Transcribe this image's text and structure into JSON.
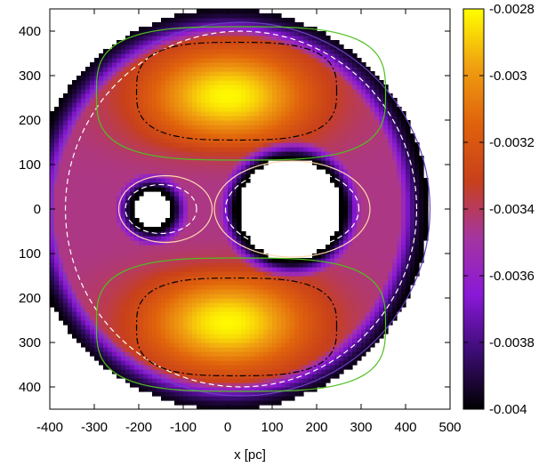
{
  "chart_data": {
    "type": "heatmap",
    "xlabel": "x [pc]",
    "ylabel": "",
    "xlim": [
      -400,
      500
    ],
    "ylim": [
      -450,
      450
    ],
    "x_ticks": [
      "-400",
      "-300",
      "-200",
      "-100",
      "0",
      "100",
      "200",
      "300",
      "400",
      "500"
    ],
    "y_ticks": [
      "400",
      "300",
      "200",
      "100",
      "0",
      "100",
      "200",
      "300",
      "400"
    ],
    "colorbar": {
      "range": [
        -0.004,
        -0.0028
      ],
      "ticks": [
        "-0.0028",
        "-0.003",
        "-0.0032",
        "-0.0034",
        "-0.0036",
        "-0.0038",
        "-0.004"
      ],
      "colormap": [
        "#000000",
        "#3c0c74",
        "#8a18d8",
        "#a535a0",
        "#c8401a",
        "#e0620c",
        "#f0a010",
        "#ffff00"
      ]
    },
    "field": {
      "outer_boundary_radius": 450,
      "holes": [
        {
          "x": 140,
          "y": 0,
          "radius": 115
        },
        {
          "x": -170,
          "y": 0,
          "radius": 40
        }
      ]
    },
    "contours": [
      {
        "style": "dash-dot",
        "color": "#000000"
      },
      {
        "style": "solid",
        "color": "#50c020"
      },
      {
        "style": "dashed",
        "color": "#ffffff"
      },
      {
        "style": "solid",
        "color": "#ffd8b0"
      },
      {
        "style": "solid",
        "color": "#6a40c0"
      }
    ]
  }
}
